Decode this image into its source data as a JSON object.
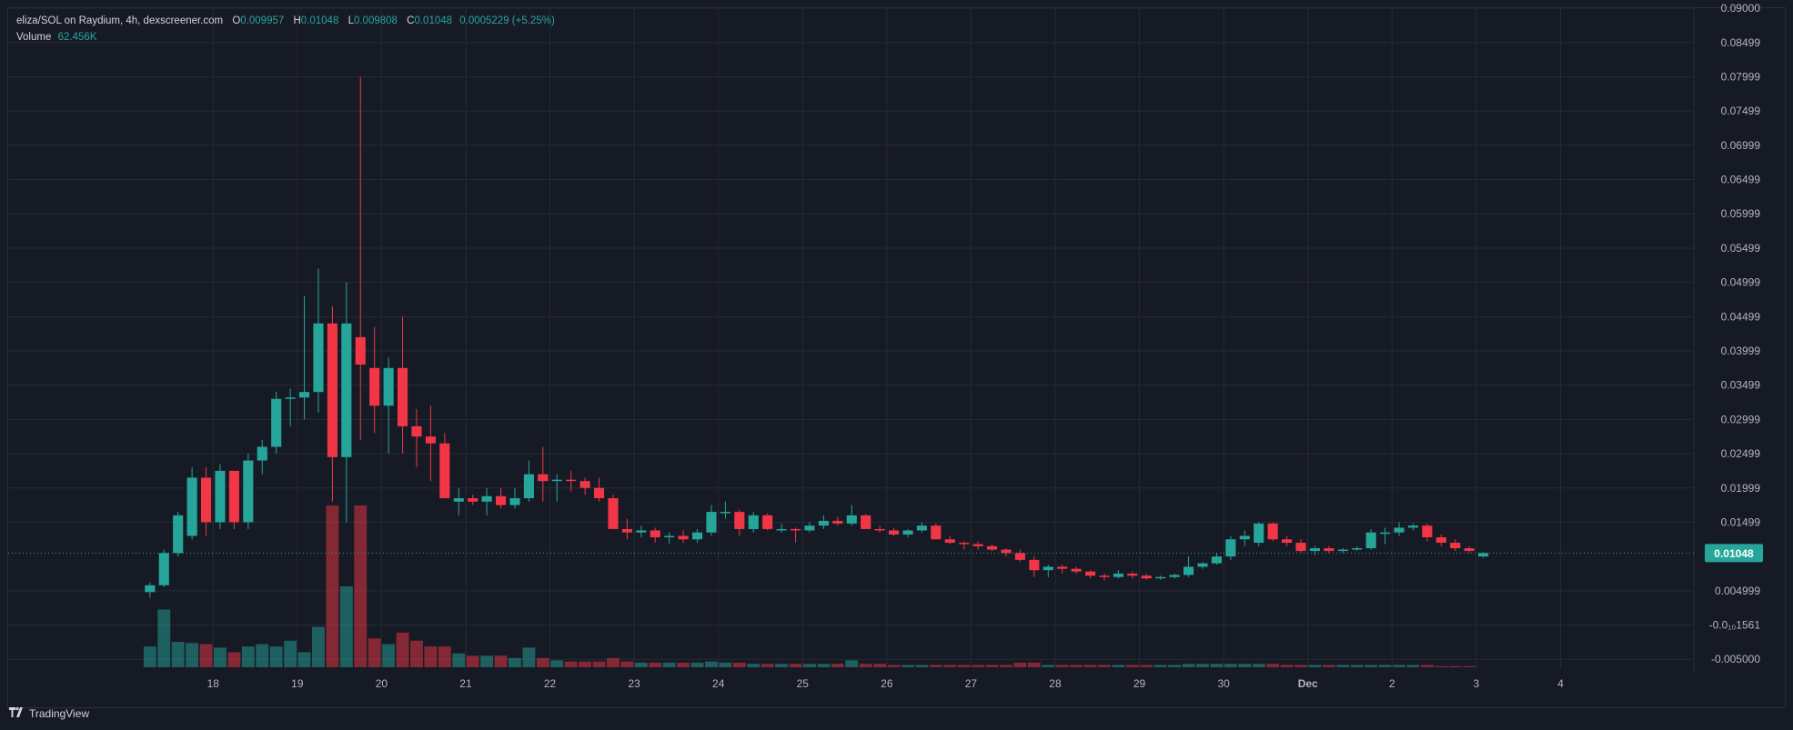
{
  "legend": {
    "pair": "eliza/SOL on Raydium, 4h, dexscreener.com",
    "o_label": "O",
    "o_value": "0.009957",
    "h_label": "H",
    "h_value": "0.01048",
    "l_label": "L",
    "l_value": "0.009808",
    "c_label": "C",
    "c_value": "0.01048",
    "change": "0.0005229 (+5.25%)",
    "volume_label": "Volume",
    "volume_value": "62.456K"
  },
  "brand": "TradingView",
  "colors": {
    "up": "#26a69a",
    "down": "#f23645",
    "background": "#161a25",
    "grid": "#262a35"
  },
  "last_price_label": "0.01048",
  "chart_data": {
    "type": "candlestick",
    "title": "",
    "y_ticks": [
      "0.09000",
      "0.08499",
      "0.07999",
      "0.07499",
      "0.06999",
      "0.06499",
      "0.05999",
      "0.05499",
      "0.04999",
      "0.04499",
      "0.03999",
      "0.03499",
      "0.02999",
      "0.02499",
      "0.01999",
      "0.01499",
      "0.004999",
      "-0.0₁₀1561",
      "-0.005000"
    ],
    "y_tick_values": [
      0.09,
      0.08499,
      0.07999,
      0.07499,
      0.06999,
      0.06499,
      0.05999,
      0.05499,
      0.04999,
      0.04499,
      0.03999,
      0.03499,
      0.02999,
      0.02499,
      0.01999,
      0.01499,
      0.004999,
      0,
      -0.005
    ],
    "ylim": [
      -0.0063,
      0.09
    ],
    "x_ticks": [
      {
        "label": "18",
        "index": 4.5
      },
      {
        "label": "19",
        "index": 10.5
      },
      {
        "label": "20",
        "index": 16.5
      },
      {
        "label": "21",
        "index": 22.5
      },
      {
        "label": "22",
        "index": 28.5
      },
      {
        "label": "23",
        "index": 34.5
      },
      {
        "label": "24",
        "index": 40.5
      },
      {
        "label": "25",
        "index": 46.5
      },
      {
        "label": "26",
        "index": 52.5
      },
      {
        "label": "27",
        "index": 58.5
      },
      {
        "label": "28",
        "index": 64.5
      },
      {
        "label": "29",
        "index": 70.5
      },
      {
        "label": "30",
        "index": 76.5
      },
      {
        "label": "Dec",
        "index": 82.5
      },
      {
        "label": "2",
        "index": 88.5
      },
      {
        "label": "3",
        "index": 94.5
      },
      {
        "label": "4",
        "index": 100.5
      }
    ],
    "x_index_range": [
      -10.1,
      110
    ],
    "candles": [
      [
        0.0048,
        0.0062,
        0.004,
        0.0058
      ],
      [
        0.0058,
        0.011,
        0.0055,
        0.0105
      ],
      [
        0.0105,
        0.0165,
        0.01,
        0.016
      ],
      [
        0.013,
        0.023,
        0.0125,
        0.0215
      ],
      [
        0.0215,
        0.023,
        0.013,
        0.015
      ],
      [
        0.015,
        0.0235,
        0.014,
        0.0225
      ],
      [
        0.0225,
        0.022,
        0.014,
        0.015
      ],
      [
        0.015,
        0.025,
        0.014,
        0.024
      ],
      [
        0.024,
        0.027,
        0.022,
        0.026
      ],
      [
        0.026,
        0.034,
        0.025,
        0.033
      ],
      [
        0.033,
        0.0345,
        0.029,
        0.0332
      ],
      [
        0.0332,
        0.048,
        0.03,
        0.034
      ],
      [
        0.034,
        0.052,
        0.031,
        0.044
      ],
      [
        0.044,
        0.0465,
        0.018,
        0.0245
      ],
      [
        0.0245,
        0.05,
        0.015,
        0.044
      ],
      [
        0.042,
        0.08,
        0.027,
        0.038
      ],
      [
        0.0375,
        0.0435,
        0.028,
        0.032
      ],
      [
        0.032,
        0.039,
        0.025,
        0.0375
      ],
      [
        0.0375,
        0.045,
        0.025,
        0.029
      ],
      [
        0.029,
        0.0315,
        0.023,
        0.0275
      ],
      [
        0.0275,
        0.032,
        0.021,
        0.0265
      ],
      [
        0.0265,
        0.028,
        0.019,
        0.0185
      ],
      [
        0.018,
        0.02,
        0.016,
        0.0185
      ],
      [
        0.0185,
        0.019,
        0.0175,
        0.018
      ],
      [
        0.018,
        0.02,
        0.016,
        0.0188
      ],
      [
        0.0188,
        0.02,
        0.017,
        0.0175
      ],
      [
        0.0175,
        0.02,
        0.017,
        0.0185
      ],
      [
        0.0185,
        0.024,
        0.018,
        0.022
      ],
      [
        0.022,
        0.026,
        0.018,
        0.021
      ],
      [
        0.021,
        0.022,
        0.018,
        0.0212
      ],
      [
        0.0212,
        0.0225,
        0.0195,
        0.021
      ],
      [
        0.021,
        0.0215,
        0.019,
        0.02
      ],
      [
        0.02,
        0.0215,
        0.018,
        0.0185
      ],
      [
        0.0185,
        0.019,
        0.014,
        0.014
      ],
      [
        0.014,
        0.0155,
        0.0125,
        0.0135
      ],
      [
        0.0135,
        0.0145,
        0.0128,
        0.0138
      ],
      [
        0.0138,
        0.0142,
        0.012,
        0.0128
      ],
      [
        0.0128,
        0.0135,
        0.0118,
        0.013
      ],
      [
        0.013,
        0.0138,
        0.012,
        0.0125
      ],
      [
        0.0125,
        0.014,
        0.012,
        0.0135
      ],
      [
        0.0135,
        0.0175,
        0.013,
        0.0165
      ],
      [
        0.0165,
        0.018,
        0.0155,
        0.0165
      ],
      [
        0.0165,
        0.0168,
        0.013,
        0.014
      ],
      [
        0.014,
        0.0165,
        0.0135,
        0.016
      ],
      [
        0.016,
        0.0163,
        0.0138,
        0.014
      ],
      [
        0.014,
        0.0148,
        0.0135,
        0.014
      ],
      [
        0.014,
        0.0142,
        0.012,
        0.0138
      ],
      [
        0.0138,
        0.015,
        0.0135,
        0.0145
      ],
      [
        0.0145,
        0.016,
        0.014,
        0.0152
      ],
      [
        0.0152,
        0.0158,
        0.0145,
        0.0148
      ],
      [
        0.0148,
        0.0175,
        0.0145,
        0.016
      ],
      [
        0.016,
        0.0162,
        0.014,
        0.014
      ],
      [
        0.014,
        0.0145,
        0.0135,
        0.0138
      ],
      [
        0.0138,
        0.0142,
        0.013,
        0.0132
      ],
      [
        0.0132,
        0.014,
        0.0128,
        0.0138
      ],
      [
        0.0138,
        0.015,
        0.0135,
        0.0145
      ],
      [
        0.0145,
        0.0148,
        0.0125,
        0.0125
      ],
      [
        0.0125,
        0.013,
        0.0118,
        0.012
      ],
      [
        0.012,
        0.0122,
        0.011,
        0.0118
      ],
      [
        0.0118,
        0.0122,
        0.011,
        0.0115
      ],
      [
        0.0115,
        0.0118,
        0.0108,
        0.011
      ],
      [
        0.011,
        0.0112,
        0.01,
        0.0105
      ],
      [
        0.0105,
        0.011,
        0.0092,
        0.0095
      ],
      [
        0.0095,
        0.01,
        0.007,
        0.008
      ],
      [
        0.008,
        0.0088,
        0.007,
        0.0085
      ],
      [
        0.0085,
        0.0088,
        0.0075,
        0.0082
      ],
      [
        0.0082,
        0.0085,
        0.0075,
        0.0078
      ],
      [
        0.0078,
        0.008,
        0.0068,
        0.0072
      ],
      [
        0.0072,
        0.0075,
        0.0065,
        0.007
      ],
      [
        0.007,
        0.008,
        0.0068,
        0.0075
      ],
      [
        0.0075,
        0.0078,
        0.0068,
        0.0072
      ],
      [
        0.0072,
        0.0075,
        0.0066,
        0.0068
      ],
      [
        0.0068,
        0.0072,
        0.0066,
        0.007
      ],
      [
        0.007,
        0.0075,
        0.0068,
        0.0073
      ],
      [
        0.0073,
        0.01,
        0.007,
        0.0085
      ],
      [
        0.0085,
        0.0092,
        0.0082,
        0.009
      ],
      [
        0.009,
        0.0105,
        0.0088,
        0.01
      ],
      [
        0.01,
        0.013,
        0.0095,
        0.0125
      ],
      [
        0.0125,
        0.0138,
        0.0115,
        0.013
      ],
      [
        0.012,
        0.015,
        0.0115,
        0.0148
      ],
      [
        0.0148,
        0.015,
        0.0122,
        0.0125
      ],
      [
        0.0125,
        0.013,
        0.0115,
        0.012
      ],
      [
        0.012,
        0.0125,
        0.0105,
        0.0108
      ],
      [
        0.0108,
        0.0115,
        0.0102,
        0.0112
      ],
      [
        0.0112,
        0.0115,
        0.0105,
        0.0108
      ],
      [
        0.0108,
        0.0112,
        0.0105,
        0.011
      ],
      [
        0.011,
        0.0115,
        0.0108,
        0.0112
      ],
      [
        0.0112,
        0.014,
        0.011,
        0.0135
      ],
      [
        0.0135,
        0.0142,
        0.0118,
        0.0135
      ],
      [
        0.0135,
        0.015,
        0.013,
        0.0142
      ],
      [
        0.0142,
        0.0148,
        0.0138,
        0.0145
      ],
      [
        0.0145,
        0.0148,
        0.0122,
        0.0128
      ],
      [
        0.0128,
        0.0132,
        0.0115,
        0.012
      ],
      [
        0.012,
        0.0125,
        0.0108,
        0.0112
      ],
      [
        0.0112,
        0.0115,
        0.0105,
        0.0108
      ],
      [
        0.01,
        0.0106,
        0.0098,
        0.0105
      ]
    ],
    "volumes": [
      0.18,
      0.5,
      0.22,
      0.21,
      0.2,
      0.17,
      0.13,
      0.18,
      0.2,
      0.18,
      0.23,
      0.13,
      0.35,
      1.4,
      0.7,
      1.4,
      0.25,
      0.2,
      0.3,
      0.23,
      0.18,
      0.18,
      0.12,
      0.1,
      0.1,
      0.1,
      0.08,
      0.17,
      0.08,
      0.06,
      0.05,
      0.05,
      0.05,
      0.08,
      0.05,
      0.04,
      0.04,
      0.04,
      0.04,
      0.04,
      0.05,
      0.04,
      0.04,
      0.03,
      0.03,
      0.03,
      0.03,
      0.03,
      0.03,
      0.03,
      0.06,
      0.03,
      0.03,
      0.02,
      0.02,
      0.02,
      0.02,
      0.02,
      0.02,
      0.02,
      0.02,
      0.02,
      0.04,
      0.04,
      0.02,
      0.02,
      0.02,
      0.02,
      0.02,
      0.02,
      0.02,
      0.02,
      0.02,
      0.02,
      0.03,
      0.03,
      0.03,
      0.03,
      0.03,
      0.03,
      0.03,
      0.02,
      0.02,
      0.02,
      0.02,
      0.02,
      0.02,
      0.02,
      0.02,
      0.02,
      0.02,
      0.02,
      0.01,
      0.01,
      0.01
    ],
    "volume_max": 1.4
  }
}
